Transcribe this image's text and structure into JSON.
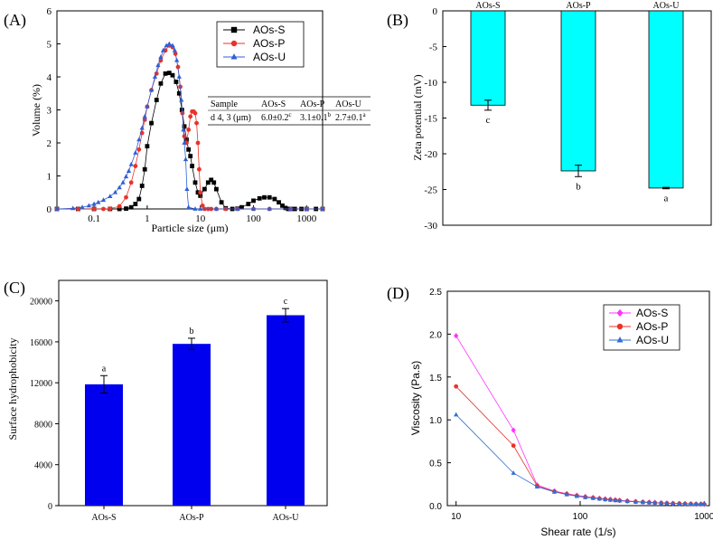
{
  "chart_data": [
    {
      "panel": "(A)",
      "type": "scatter",
      "xlabel": "Particle size (μm)",
      "ylabel": "Volume (%)",
      "xscale": "log",
      "xlim": [
        0.02,
        2000
      ],
      "ylim": [
        0,
        6
      ],
      "xtick_labels": [
        "0.1",
        "1",
        "10",
        "100",
        "1000"
      ],
      "ytick_labels": [
        "0",
        "1",
        "2",
        "3",
        "4",
        "5",
        "6"
      ],
      "legend": "top-right",
      "series": [
        {
          "name": "AOs-S",
          "color": "#000000",
          "marker": "square",
          "x": [
            0.02,
            0.05,
            0.1,
            0.2,
            0.3,
            0.4,
            0.5,
            0.6,
            0.7,
            0.8,
            0.9,
            1.0,
            1.2,
            1.5,
            1.8,
            2.2,
            2.6,
            3.0,
            3.5,
            4.0,
            4.5,
            5.0,
            5.5,
            6.0,
            6.5,
            7.0,
            8.0,
            9.0,
            10,
            12,
            14,
            16,
            18,
            20,
            25,
            30,
            40,
            50,
            60,
            80,
            100,
            130,
            160,
            200,
            250,
            300,
            350,
            400,
            450,
            500,
            600,
            800,
            1000,
            1500,
            2000
          ],
          "y": [
            0,
            0,
            0,
            0,
            0,
            0.01,
            0.05,
            0.15,
            0.3,
            0.7,
            1.2,
            1.9,
            2.6,
            3.3,
            3.8,
            4.1,
            4.12,
            4.05,
            3.85,
            3.5,
            3.0,
            2.5,
            2.1,
            1.8,
            1.6,
            1.3,
            0.8,
            0.5,
            0.4,
            0.6,
            0.8,
            0.88,
            0.8,
            0.6,
            0.2,
            0.02,
            0,
            0.01,
            0.05,
            0.15,
            0.25,
            0.32,
            0.35,
            0.35,
            0.3,
            0.2,
            0.1,
            0.03,
            0,
            0,
            0,
            0,
            0,
            0,
            0
          ]
        },
        {
          "name": "AOs-P",
          "color": "#e8332a",
          "marker": "circle",
          "x": [
            0.02,
            0.05,
            0.1,
            0.15,
            0.2,
            0.3,
            0.4,
            0.5,
            0.6,
            0.7,
            0.8,
            0.9,
            1.0,
            1.2,
            1.5,
            1.8,
            2.2,
            2.6,
            3.0,
            3.4,
            3.8,
            4.2,
            4.6,
            5.0,
            5.5,
            6.0,
            6.5,
            7.0,
            7.5,
            8.0,
            8.5,
            9.0,
            9.5,
            10,
            11,
            12,
            14,
            16,
            20,
            30,
            50,
            100,
            200,
            500,
            1000,
            2000
          ],
          "y": [
            0,
            0,
            0,
            0,
            0.01,
            0.08,
            0.35,
            0.8,
            1.3,
            1.8,
            2.3,
            2.7,
            3.1,
            3.6,
            4.1,
            4.5,
            4.8,
            4.95,
            4.9,
            4.7,
            4.3,
            3.7,
            2.9,
            2.2,
            2.0,
            2.4,
            2.8,
            2.95,
            2.95,
            2.9,
            2.6,
            2.0,
            1.2,
            0.5,
            0.1,
            0,
            0,
            0,
            0,
            0,
            0,
            0,
            0,
            0,
            0,
            0
          ]
        },
        {
          "name": "AOs-U",
          "color": "#2f5fd6",
          "marker": "triangle",
          "x": [
            0.02,
            0.04,
            0.06,
            0.08,
            0.1,
            0.12,
            0.15,
            0.2,
            0.25,
            0.3,
            0.35,
            0.4,
            0.45,
            0.5,
            0.6,
            0.7,
            0.8,
            0.9,
            1.0,
            1.2,
            1.4,
            1.6,
            1.8,
            2.0,
            2.3,
            2.6,
            3.0,
            3.3,
            3.6,
            4.0,
            4.4,
            4.8,
            5.0,
            5.3,
            5.6,
            6,
            8,
            10,
            20,
            50,
            100,
            200,
            500,
            1000,
            2000
          ],
          "y": [
            0,
            0.02,
            0.05,
            0.1,
            0.15,
            0.2,
            0.27,
            0.38,
            0.5,
            0.65,
            0.8,
            0.98,
            1.15,
            1.35,
            1.7,
            2.1,
            2.45,
            2.8,
            3.1,
            3.6,
            4.0,
            4.35,
            4.6,
            4.8,
            4.95,
            5.0,
            4.95,
            4.8,
            4.5,
            4.0,
            3.3,
            2.4,
            2.0,
            1.5,
            0.6,
            0.05,
            0,
            0,
            0,
            0,
            0,
            0,
            0,
            0,
            0
          ]
        }
      ],
      "table": {
        "headers": [
          "Sample",
          "AOs-S",
          "AOs-P",
          "AOs-U"
        ],
        "row_label": "d 4, 3 (μm)",
        "values": [
          {
            "val": "6.0±0.2",
            "sup": "c"
          },
          {
            "val": "3.1±0.1",
            "sup": "b"
          },
          {
            "val": "2.7±0.1",
            "sup": "a"
          }
        ]
      }
    },
    {
      "panel": "(B)",
      "type": "bar",
      "categories": [
        "AOs-S",
        "AOs-P",
        "AOs-U"
      ],
      "values": [
        -13.2,
        -22.4,
        -24.8
      ],
      "errors": [
        0.7,
        0.8,
        0.1
      ],
      "letters": [
        "c",
        "b",
        "a"
      ],
      "bar_color": "#00ffff",
      "ylabel": "Zeta potential (mV)",
      "ylim": [
        -30,
        0
      ],
      "ytick_labels": [
        "0",
        "-5",
        "-10",
        "-15",
        "-20",
        "-25",
        "-30"
      ]
    },
    {
      "panel": "(C)",
      "type": "bar",
      "categories": [
        "AOs-S",
        "AOs-P",
        "AOs-U"
      ],
      "values": [
        11850,
        15800,
        18600
      ],
      "errors": [
        850,
        550,
        650
      ],
      "letters": [
        "a",
        "b",
        "c"
      ],
      "bar_color": "#0000ee",
      "ylabel": "Surface hydrophobicity",
      "ylim": [
        0,
        22000
      ],
      "ytick_labels": [
        "0",
        "4000",
        "8000",
        "12000",
        "16000",
        "20000"
      ]
    },
    {
      "panel": "(D)",
      "type": "line",
      "xlabel": "Shear rate (1/s)",
      "ylabel": "Viscosity (Pa.s)",
      "xscale": "log",
      "xlim": [
        8.5,
        1100
      ],
      "ylim": [
        0,
        2.5
      ],
      "xtick_labels": [
        "10",
        "100",
        "1000"
      ],
      "ytick_labels": [
        "0.0",
        "0.5",
        "1.0",
        "1.5",
        "2.0",
        "2.5"
      ],
      "legend": "top-right",
      "x": [
        10,
        29,
        45,
        62,
        78,
        94,
        110,
        127,
        143,
        159,
        175,
        192,
        208,
        240,
        280,
        320,
        360,
        400,
        450,
        500,
        560,
        630,
        700,
        780,
        860,
        940,
        1000
      ],
      "series": [
        {
          "name": "AOs-S",
          "color": "#ff33ff",
          "marker": "diamond",
          "values": [
            1.98,
            0.88,
            0.24,
            0.17,
            0.14,
            0.12,
            0.105,
            0.095,
            0.085,
            0.078,
            0.072,
            0.067,
            0.062,
            0.055,
            0.048,
            0.043,
            0.039,
            0.035,
            0.032,
            0.029,
            0.027,
            0.025,
            0.023,
            0.021,
            0.019,
            0.018,
            0.017
          ]
        },
        {
          "name": "AOs-P",
          "color": "#e8332a",
          "marker": "circle",
          "values": [
            1.39,
            0.7,
            0.23,
            0.165,
            0.135,
            0.115,
            0.1,
            0.09,
            0.082,
            0.075,
            0.069,
            0.064,
            0.059,
            0.052,
            0.046,
            0.041,
            0.037,
            0.034,
            0.031,
            0.028,
            0.026,
            0.024,
            0.022,
            0.02,
            0.018,
            0.017,
            0.016
          ]
        },
        {
          "name": "AOs-U",
          "color": "#2f6fd6",
          "marker": "triangle",
          "values": [
            1.06,
            0.38,
            0.22,
            0.16,
            0.13,
            0.11,
            0.097,
            0.087,
            0.079,
            0.072,
            0.066,
            0.061,
            0.057,
            0.05,
            0.044,
            0.039,
            0.036,
            0.033,
            0.03,
            0.027,
            0.025,
            0.023,
            0.021,
            0.019,
            0.018,
            0.017,
            0.016
          ]
        }
      ]
    }
  ]
}
